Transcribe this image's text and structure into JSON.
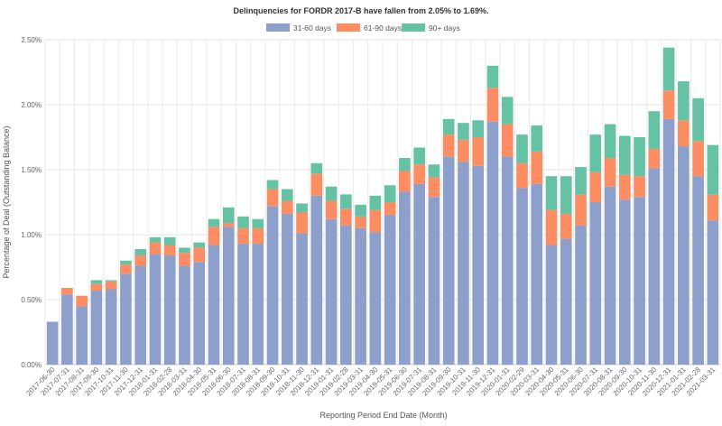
{
  "chart_data": {
    "type": "bar",
    "stacked": true,
    "title": "Delinquencies for FORDR 2017-B have fallen from 2.05% to 1.69%.",
    "xlabel": "Reporting Period End Date (Month)",
    "ylabel": "Percentage of Deal (Outstanding Balance)",
    "ylim": [
      0,
      2.5
    ],
    "yticks": [
      0,
      0.5,
      1.0,
      1.5,
      2.0,
      2.5
    ],
    "ytick_labels": [
      "0.00%",
      "0.50%",
      "1.00%",
      "1.50%",
      "2.00%",
      "2.50%"
    ],
    "legend_position": "top-center",
    "grid": true,
    "categories": [
      "2017-06-30",
      "2017-07-31",
      "2017-08-31",
      "2017-09-30",
      "2017-10-31",
      "2017-11-30",
      "2017-12-31",
      "2018-01-31",
      "2018-02-28",
      "2018-03-31",
      "2018-04-30",
      "2018-05-31",
      "2018-06-30",
      "2018-07-31",
      "2018-08-31",
      "2018-09-30",
      "2018-10-31",
      "2018-11-30",
      "2018-12-31",
      "2019-01-31",
      "2019-02-28",
      "2019-03-31",
      "2019-04-30",
      "2019-05-31",
      "2019-06-30",
      "2019-07-31",
      "2019-08-31",
      "2019-09-30",
      "2019-10-31",
      "2019-11-30",
      "2019-12-31",
      "2020-01-31",
      "2020-02-29",
      "2020-03-31",
      "2020-04-30",
      "2020-05-31",
      "2020-06-30",
      "2020-07-31",
      "2020-08-31",
      "2020-09-30",
      "2020-10-31",
      "2020-11-30",
      "2020-12-31",
      "2021-01-31",
      "2021-02-28",
      "2021-03-31"
    ],
    "series": [
      {
        "name": "31-60 days",
        "color": "#8da0cb",
        "values": [
          0.33,
          0.54,
          0.45,
          0.57,
          0.58,
          0.7,
          0.76,
          0.85,
          0.84,
          0.76,
          0.79,
          0.92,
          1.06,
          0.93,
          0.93,
          1.22,
          1.16,
          1.01,
          1.3,
          1.12,
          1.07,
          1.05,
          1.02,
          1.15,
          1.33,
          1.39,
          1.29,
          1.6,
          1.56,
          1.53,
          1.87,
          1.6,
          1.36,
          1.39,
          0.92,
          0.97,
          1.07,
          1.25,
          1.37,
          1.27,
          1.29,
          1.51,
          1.89,
          1.68,
          1.45,
          1.11
        ]
      },
      {
        "name": "61-90 days",
        "color": "#fc8d62",
        "values": [
          0.0,
          0.05,
          0.08,
          0.05,
          0.06,
          0.07,
          0.08,
          0.09,
          0.08,
          0.1,
          0.11,
          0.14,
          0.03,
          0.12,
          0.12,
          0.13,
          0.1,
          0.16,
          0.17,
          0.14,
          0.13,
          0.09,
          0.17,
          0.1,
          0.16,
          0.15,
          0.15,
          0.17,
          0.17,
          0.22,
          0.26,
          0.25,
          0.19,
          0.25,
          0.27,
          0.19,
          0.24,
          0.23,
          0.22,
          0.19,
          0.16,
          0.15,
          0.22,
          0.2,
          0.27,
          0.2
        ]
      },
      {
        "name": "90+ days",
        "color": "#66c2a5",
        "values": [
          0.0,
          0.0,
          0.0,
          0.03,
          0.01,
          0.03,
          0.05,
          0.04,
          0.06,
          0.04,
          0.04,
          0.06,
          0.12,
          0.09,
          0.07,
          0.07,
          0.09,
          0.07,
          0.08,
          0.11,
          0.11,
          0.09,
          0.11,
          0.13,
          0.1,
          0.13,
          0.1,
          0.12,
          0.13,
          0.13,
          0.17,
          0.21,
          0.22,
          0.2,
          0.26,
          0.29,
          0.21,
          0.29,
          0.26,
          0.3,
          0.3,
          0.29,
          0.33,
          0.3,
          0.33,
          0.38
        ]
      }
    ]
  }
}
